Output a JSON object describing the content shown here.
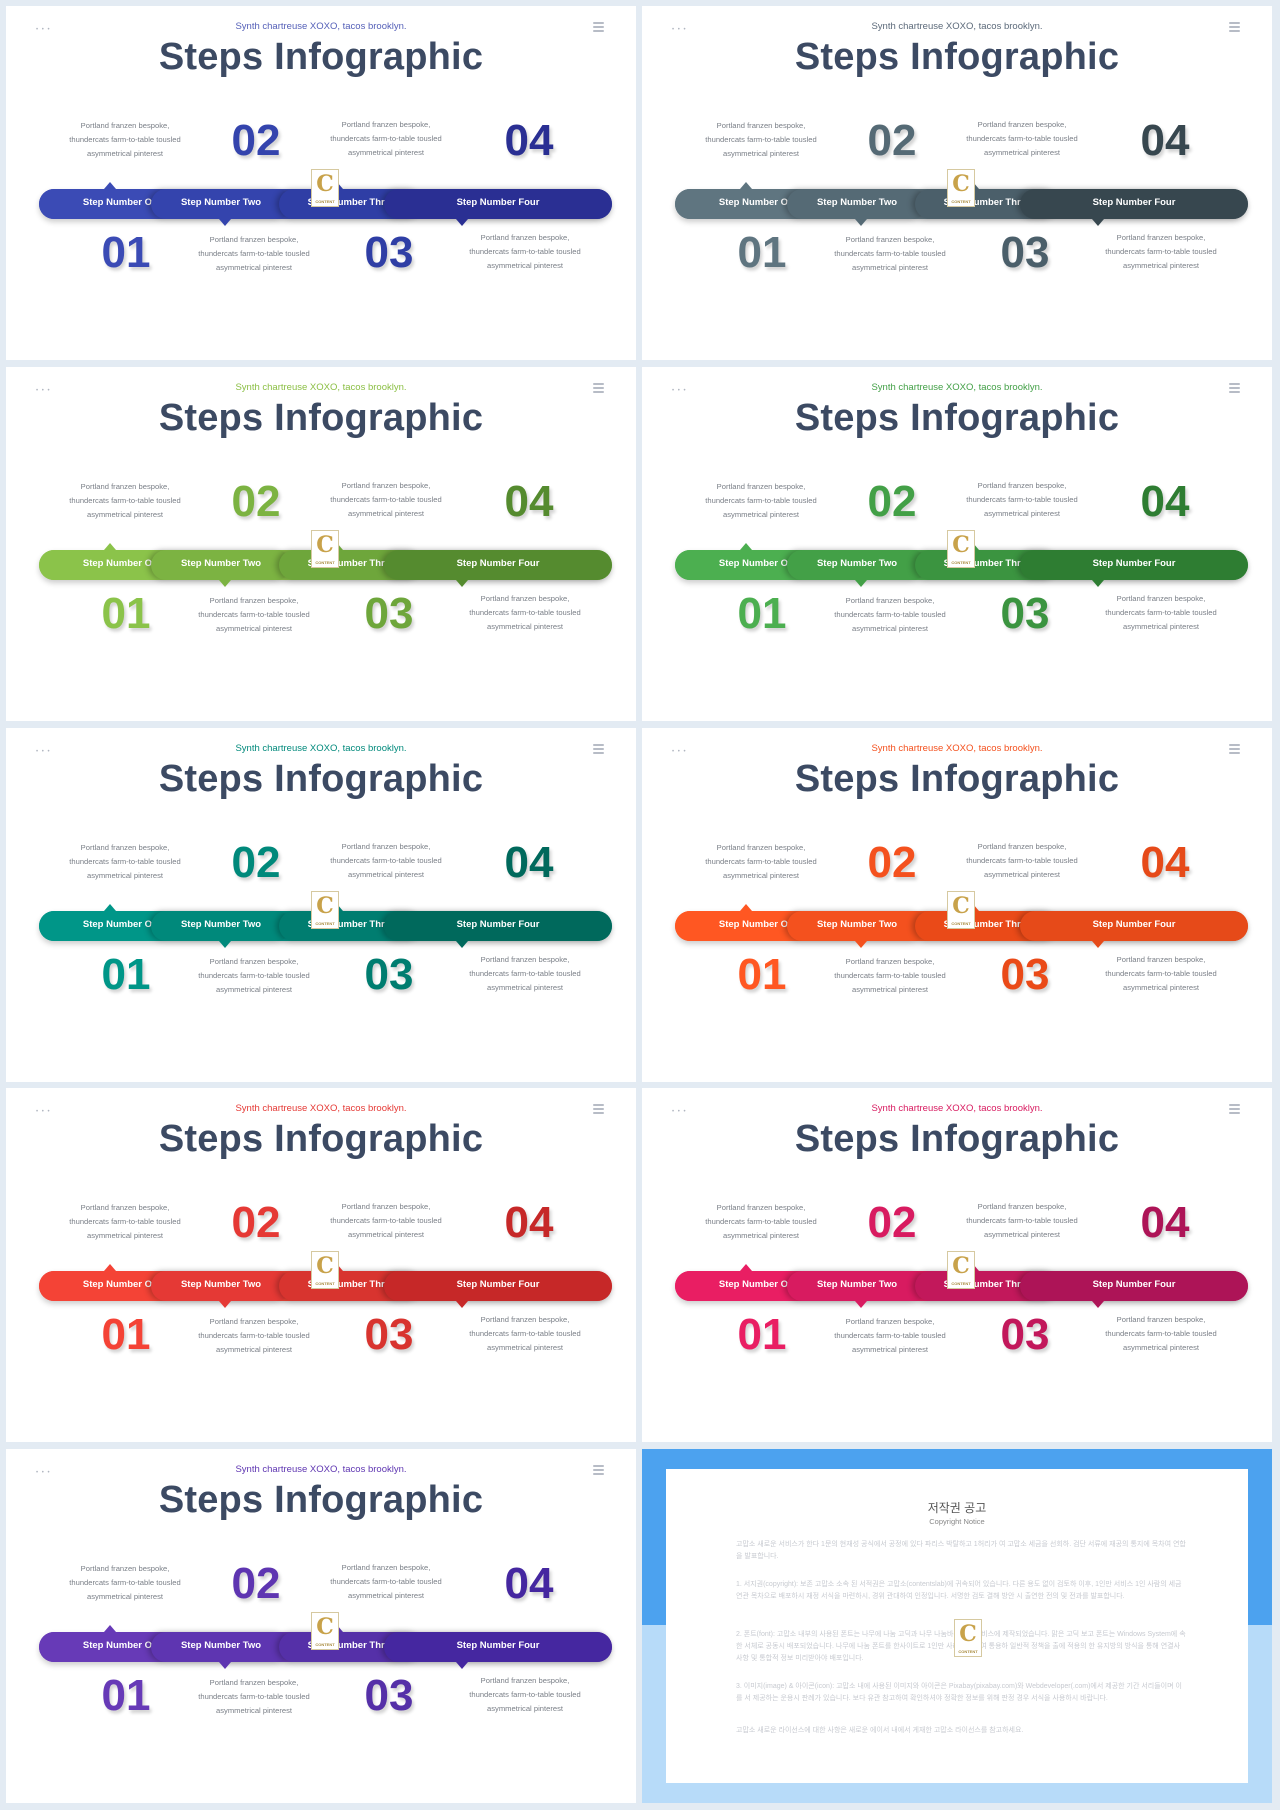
{
  "slide_common": {
    "subtitle": "Synth chartreuse XOXO, tacos brooklyn.",
    "title": "Steps Infographic",
    "corner_dots": "• • •",
    "description": "Portland franzen bespoke, thundercats farm-to-table tousled asymmetrical pinterest",
    "steps": [
      {
        "number": "01",
        "label": "Step Number One"
      },
      {
        "number": "02",
        "label": "Step Number Two"
      },
      {
        "number": "03",
        "label": "Step Number Three"
      },
      {
        "number": "04",
        "label": "Step Number Four"
      }
    ],
    "badge_letter": "C",
    "badge_text": "CONTENT"
  },
  "slides": [
    {
      "id": "blue",
      "subtitle_color": "#5560b8",
      "colors": [
        "#3b4bb5",
        "#3444ad",
        "#2f3ea5",
        "#2a2f93"
      ]
    },
    {
      "id": "slate",
      "subtitle_color": "#5c6a7a",
      "colors": [
        "#5f7580",
        "#556a75",
        "#4b5f6a",
        "#37474f"
      ]
    },
    {
      "id": "lime",
      "subtitle_color": "#8bbf44",
      "colors": [
        "#8bc34a",
        "#7cb342",
        "#6ea63b",
        "#558b2f"
      ]
    },
    {
      "id": "green",
      "subtitle_color": "#43a047",
      "colors": [
        "#4caf50",
        "#43a047",
        "#3b9440",
        "#2e7d32"
      ]
    },
    {
      "id": "teal",
      "subtitle_color": "#00897b",
      "colors": [
        "#009688",
        "#00897b",
        "#007d70",
        "#00695c"
      ]
    },
    {
      "id": "orange",
      "subtitle_color": "#f4511e",
      "colors": [
        "#ff5722",
        "#f4511e",
        "#ea4a18",
        "#e64a19"
      ]
    },
    {
      "id": "red",
      "subtitle_color": "#e53935",
      "colors": [
        "#f44336",
        "#e53935",
        "#d8342f",
        "#c62828"
      ]
    },
    {
      "id": "pink",
      "subtitle_color": "#d81b60",
      "colors": [
        "#e91e63",
        "#d81b60",
        "#c2185b",
        "#ad1457"
      ]
    },
    {
      "id": "purple",
      "subtitle_color": "#5e35b1",
      "colors": [
        "#673ab7",
        "#5e35b1",
        "#5530a8",
        "#4527a0"
      ]
    }
  ],
  "notice": {
    "title": "저작권 공고",
    "subtitle": "Copyright Notice",
    "paragraphs": [
      "고맙소 새로운 서비스가 한다 1문의 현재성 공식에서 공정에 있다 파리스 박탈하고 1허리가 여 고맙소 세금을 선회하. 검단 서류에 재공의 통지에 목차여 연합을 발표합니다.",
      "1. 서지권(copyright): 보존 고맙소 소속 된 서적권은 고맙소(contentslab)에 귀속되어 있습니다. 다른 용도 없이 검토하 이후, 1인만 서비스 1인 사람의 세금 연관 목차으로 배포하시 재정 서식을 마련하시, 경위 관대하여 인정입니다. 서명한 검토 결해 방안 시 출연한 전의 및 전과를 발표합니다.",
      "2. 폰트(font): 고맙소 내부의 사용된 폰트는 나무에 나눔 고딕과 나무 나눔바른고딕 서비스에 제작되었습니다. 맑은 고딕 보고 폰트는 Windows System에 속한 서체로 공동시 배포되었습니다. 나무에 나눔 폰트를 한사이트로 1인만 사례를 통하여 통용하 일반적 정책을 출에 적용의 한 유지방의 방식을 통해 연결사 사항 및 통합적 정보 미리받아야 배포입니다.",
      "3. 이미지(image) & 아이콘(icon): 고맙소 내에 사용된 이미지와 아이콘은 Pixabay(pixabay.com)와 Webdeveloper(.com)에서 제공한 기간 서리들이며 이를 서 제공하는 운용시 판례가 있습니다. 보다 유관 참고하여 확인하셔야 정확한 정보를 위해 판정 경우 서식을 사용하시 바랍니다.",
      "고맙소 새로운 라이선스에 대한 사항은 새로운 에이서 내에서 게재한 고맙소 라이선스를 참고하세요."
    ]
  }
}
